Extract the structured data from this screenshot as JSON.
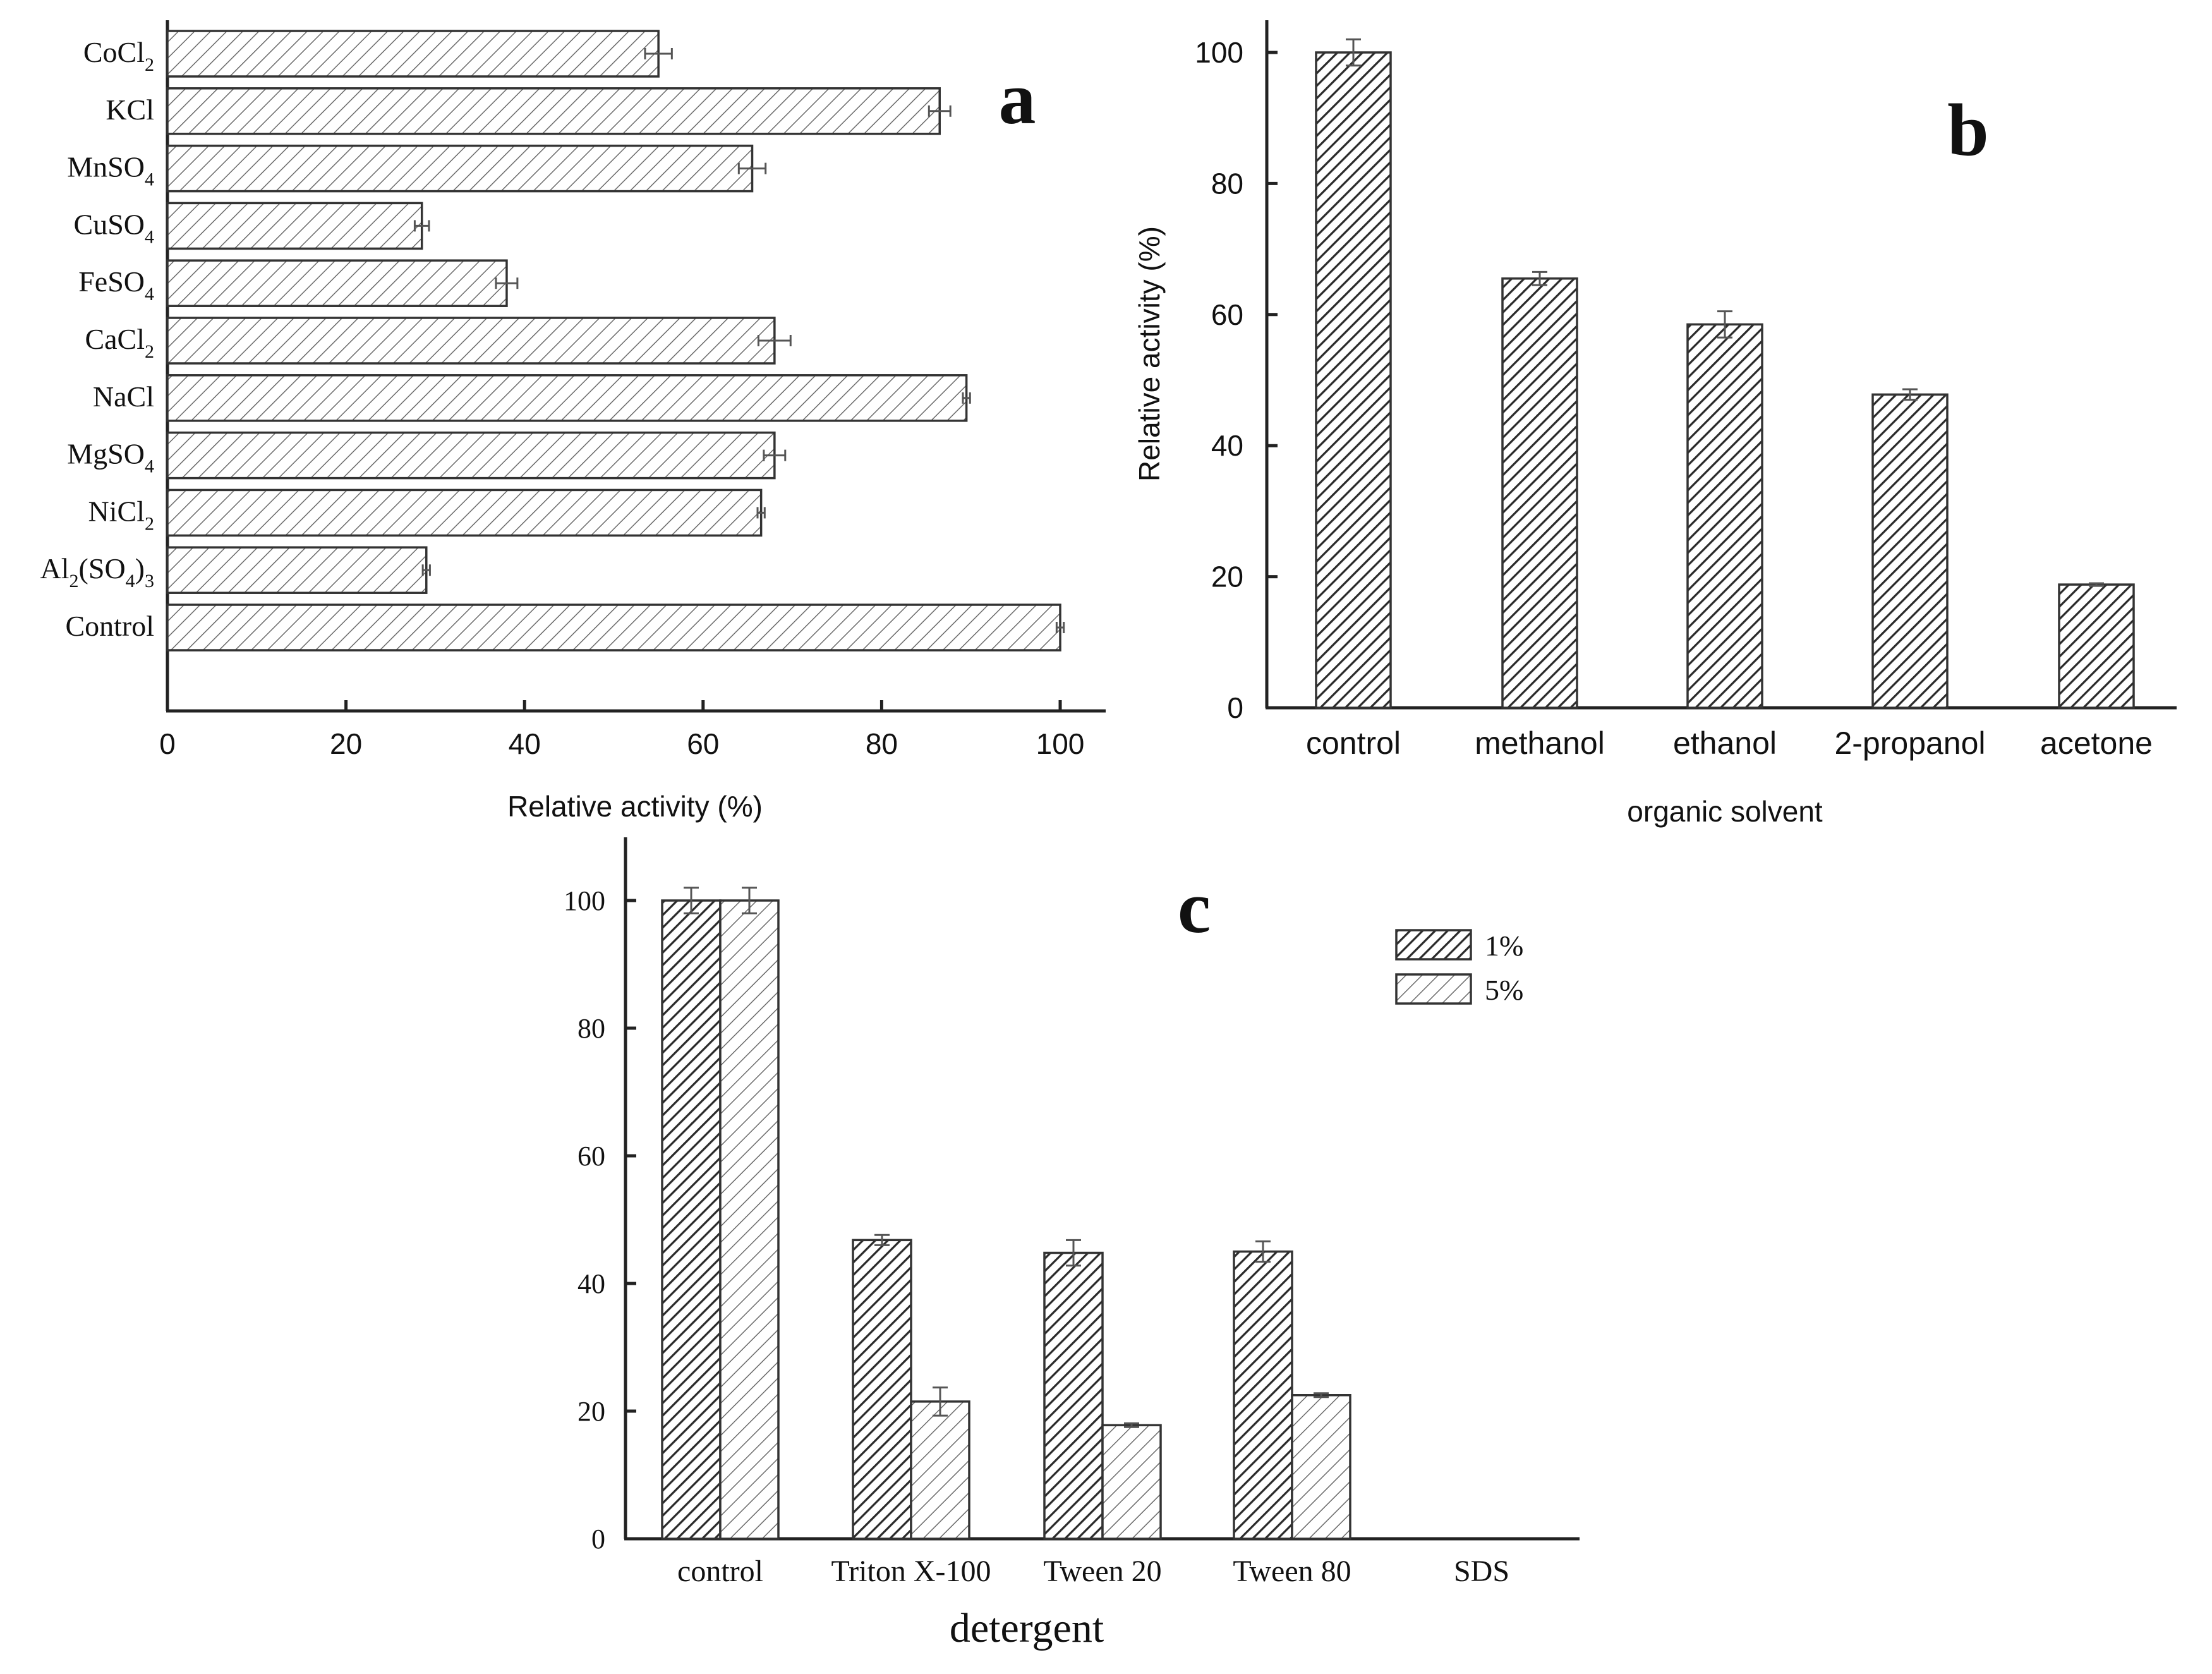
{
  "chart_data": [
    {
      "panel": "a",
      "type": "bar",
      "orientation": "horizontal",
      "panel_label": "a",
      "title": "",
      "xlabel": "Relative activity (%)",
      "ylabel": "",
      "xlim": [
        0,
        105
      ],
      "xticks": [
        "0",
        "20",
        "40",
        "60",
        "80",
        "100"
      ],
      "categories": [
        {
          "base": "CoCl",
          "sub": "2",
          "post": "",
          "sub2": ""
        },
        {
          "base": "KCl",
          "sub": "",
          "post": "",
          "sub2": ""
        },
        {
          "base": "MnSO",
          "sub": "4",
          "post": "",
          "sub2": ""
        },
        {
          "base": "CuSO",
          "sub": "4",
          "post": "",
          "sub2": ""
        },
        {
          "base": "FeSO",
          "sub": "4",
          "post": "",
          "sub2": ""
        },
        {
          "base": "CaCl",
          "sub": "2",
          "post": "",
          "sub2": ""
        },
        {
          "base": "NaCl",
          "sub": "",
          "post": "",
          "sub2": ""
        },
        {
          "base": "MgSO",
          "sub": "4",
          "post": "",
          "sub2": ""
        },
        {
          "base": "NiCl",
          "sub": "2",
          "post": "",
          "sub2": ""
        },
        {
          "base": "Al",
          "sub": "2",
          "post": "(SO",
          "sub2": "4",
          "post2": ")",
          "sub3": "3"
        },
        {
          "base": "Control",
          "sub": "",
          "post": "",
          "sub2": ""
        }
      ],
      "values": [
        55,
        86.5,
        65.5,
        28.5,
        38,
        68,
        89.5,
        68,
        66.5,
        29,
        100
      ],
      "errors": [
        1.5,
        1.2,
        1.5,
        0.8,
        1.2,
        1.8,
        0.4,
        1.2,
        0.4,
        0.4,
        0.4
      ],
      "bar_style": "light-hatch"
    },
    {
      "panel": "b",
      "type": "bar",
      "panel_label": "b",
      "title": "",
      "xlabel": "organic solvent",
      "ylabel": "Relative activity (%)",
      "ylim": [
        0,
        105
      ],
      "yticks": [
        "0",
        "20",
        "40",
        "60",
        "80",
        "100"
      ],
      "categories": [
        "control",
        "methanol",
        "ethanol",
        "2-propanol",
        "acetone"
      ],
      "values": [
        100,
        65.5,
        58.5,
        47.8,
        18.8
      ],
      "errors": [
        2.0,
        1.0,
        2.0,
        0.8,
        0.2
      ],
      "bar_style": "dark-hatch"
    },
    {
      "panel": "c",
      "type": "bar",
      "panel_label": "c",
      "title": "",
      "xlabel": "detergent",
      "ylabel": "",
      "ylim": [
        0,
        110
      ],
      "yticks": [
        "0",
        "20",
        "40",
        "60",
        "80",
        "100"
      ],
      "categories": [
        "control",
        "Triton X-100",
        "Tween 20",
        "Tween 80",
        "SDS"
      ],
      "series": [
        {
          "name": "1%",
          "values": [
            100,
            46.8,
            44.8,
            45.0,
            0
          ],
          "errors": [
            2.0,
            0.8,
            2.0,
            1.6,
            0
          ],
          "style": "dark-hatch"
        },
        {
          "name": "5%",
          "values": [
            100,
            21.5,
            17.8,
            22.5,
            0
          ],
          "errors": [
            2.0,
            2.2,
            0.3,
            0.3,
            0
          ],
          "style": "light-hatch"
        }
      ],
      "legend_position": "top-right"
    }
  ]
}
